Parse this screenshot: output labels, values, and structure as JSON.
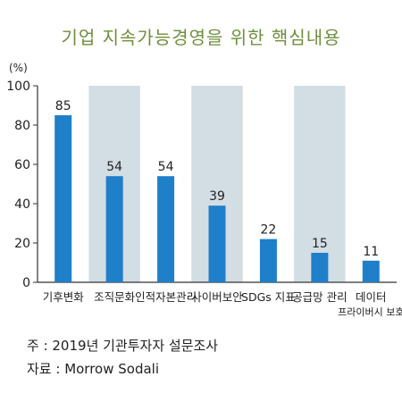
{
  "chart_data": {
    "type": "bar",
    "title": "기업 지속가능경영을 위한 핵심내용",
    "ylabel": "(%)",
    "xlabel": "",
    "ylim": [
      0,
      100
    ],
    "yticks": [
      0,
      20,
      40,
      60,
      80,
      100
    ],
    "categories": [
      [
        "기후변화"
      ],
      [
        "조직문화"
      ],
      [
        "인적자본관리"
      ],
      [
        "사이버보안"
      ],
      [
        "SDGs 지표"
      ],
      [
        "공급망 관리"
      ],
      [
        "데이터",
        "프라이버시 보호"
      ]
    ],
    "values": [
      85,
      54,
      54,
      39,
      22,
      15,
      11
    ],
    "bar_color": "#1f7fc9",
    "band_color": "#d3dde4",
    "axis_color": "#333333"
  },
  "notes": {
    "note1": "주 : 2019년 기관투자자 설문조사",
    "note2": "자료 : Morrow Sodali"
  }
}
